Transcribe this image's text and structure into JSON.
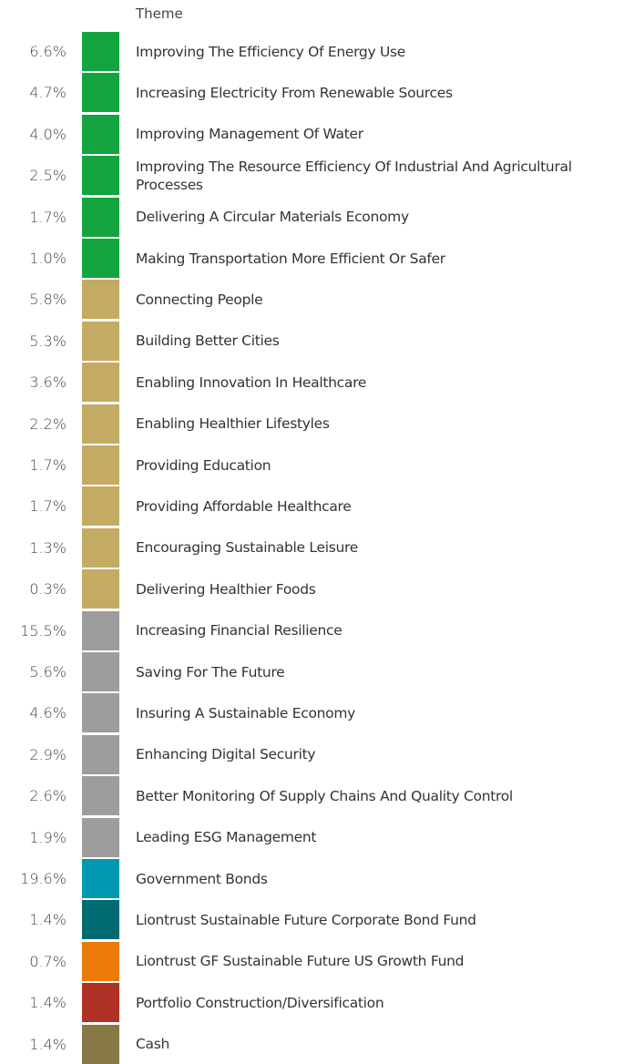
{
  "header": {
    "title": "Theme"
  },
  "rows": [
    {
      "weight": "6.6%",
      "color": "#13a43f",
      "theme": "Improving The Efficiency Of Energy Use"
    },
    {
      "weight": "4.7%",
      "color": "#13a43f",
      "theme": "Increasing Electricity From Renewable Sources"
    },
    {
      "weight": "4.0%",
      "color": "#13a43f",
      "theme": "Improving Management Of Water"
    },
    {
      "weight": "2.5%",
      "color": "#13a43f",
      "theme": "Improving The Resource Efficiency Of Industrial And Agricultural Processes"
    },
    {
      "weight": "1.7%",
      "color": "#13a43f",
      "theme": "Delivering A Circular Materials Economy"
    },
    {
      "weight": "1.0%",
      "color": "#13a43f",
      "theme": "Making Transportation More Efficient Or Safer"
    },
    {
      "weight": "5.8%",
      "color": "#c4ab63",
      "theme": "Connecting People"
    },
    {
      "weight": "5.3%",
      "color": "#c4ab63",
      "theme": "Building Better Cities"
    },
    {
      "weight": "3.6%",
      "color": "#c4ab63",
      "theme": "Enabling Innovation In Healthcare"
    },
    {
      "weight": "2.2%",
      "color": "#c4ab63",
      "theme": "Enabling Healthier Lifestyles"
    },
    {
      "weight": "1.7%",
      "color": "#c4ab63",
      "theme": "Providing Education"
    },
    {
      "weight": "1.7%",
      "color": "#c4ab63",
      "theme": "Providing Affordable Healthcare"
    },
    {
      "weight": "1.3%",
      "color": "#c4ab63",
      "theme": "Encouraging Sustainable Leisure"
    },
    {
      "weight": "0.3%",
      "color": "#c4ab63",
      "theme": "Delivering Healthier Foods"
    },
    {
      "weight": "15.5%",
      "color": "#9d9d9d",
      "theme": "Increasing Financial Resilience"
    },
    {
      "weight": "5.6%",
      "color": "#9d9d9d",
      "theme": "Saving For The Future"
    },
    {
      "weight": "4.6%",
      "color": "#9d9d9d",
      "theme": "Insuring A Sustainable Economy"
    },
    {
      "weight": "2.9%",
      "color": "#9d9d9d",
      "theme": "Enhancing Digital Security"
    },
    {
      "weight": "2.6%",
      "color": "#9d9d9d",
      "theme": "Better Monitoring Of Supply Chains And Quality Control"
    },
    {
      "weight": "1.9%",
      "color": "#9d9d9d",
      "theme": "Leading ESG Management"
    },
    {
      "weight": "19.6%",
      "color": "#0098ae",
      "theme": "Government Bonds"
    },
    {
      "weight": "1.4%",
      "color": "#006b73",
      "theme": "Liontrust Sustainable Future Corporate Bond Fund"
    },
    {
      "weight": "0.7%",
      "color": "#ec7a08",
      "theme": "Liontrust GF Sustainable Future US Growth Fund"
    },
    {
      "weight": "1.4%",
      "color": "#b03126",
      "theme": "Portfolio Construction/Diversification"
    },
    {
      "weight": "1.4%",
      "color": "#867945",
      "theme": "Cash"
    }
  ]
}
